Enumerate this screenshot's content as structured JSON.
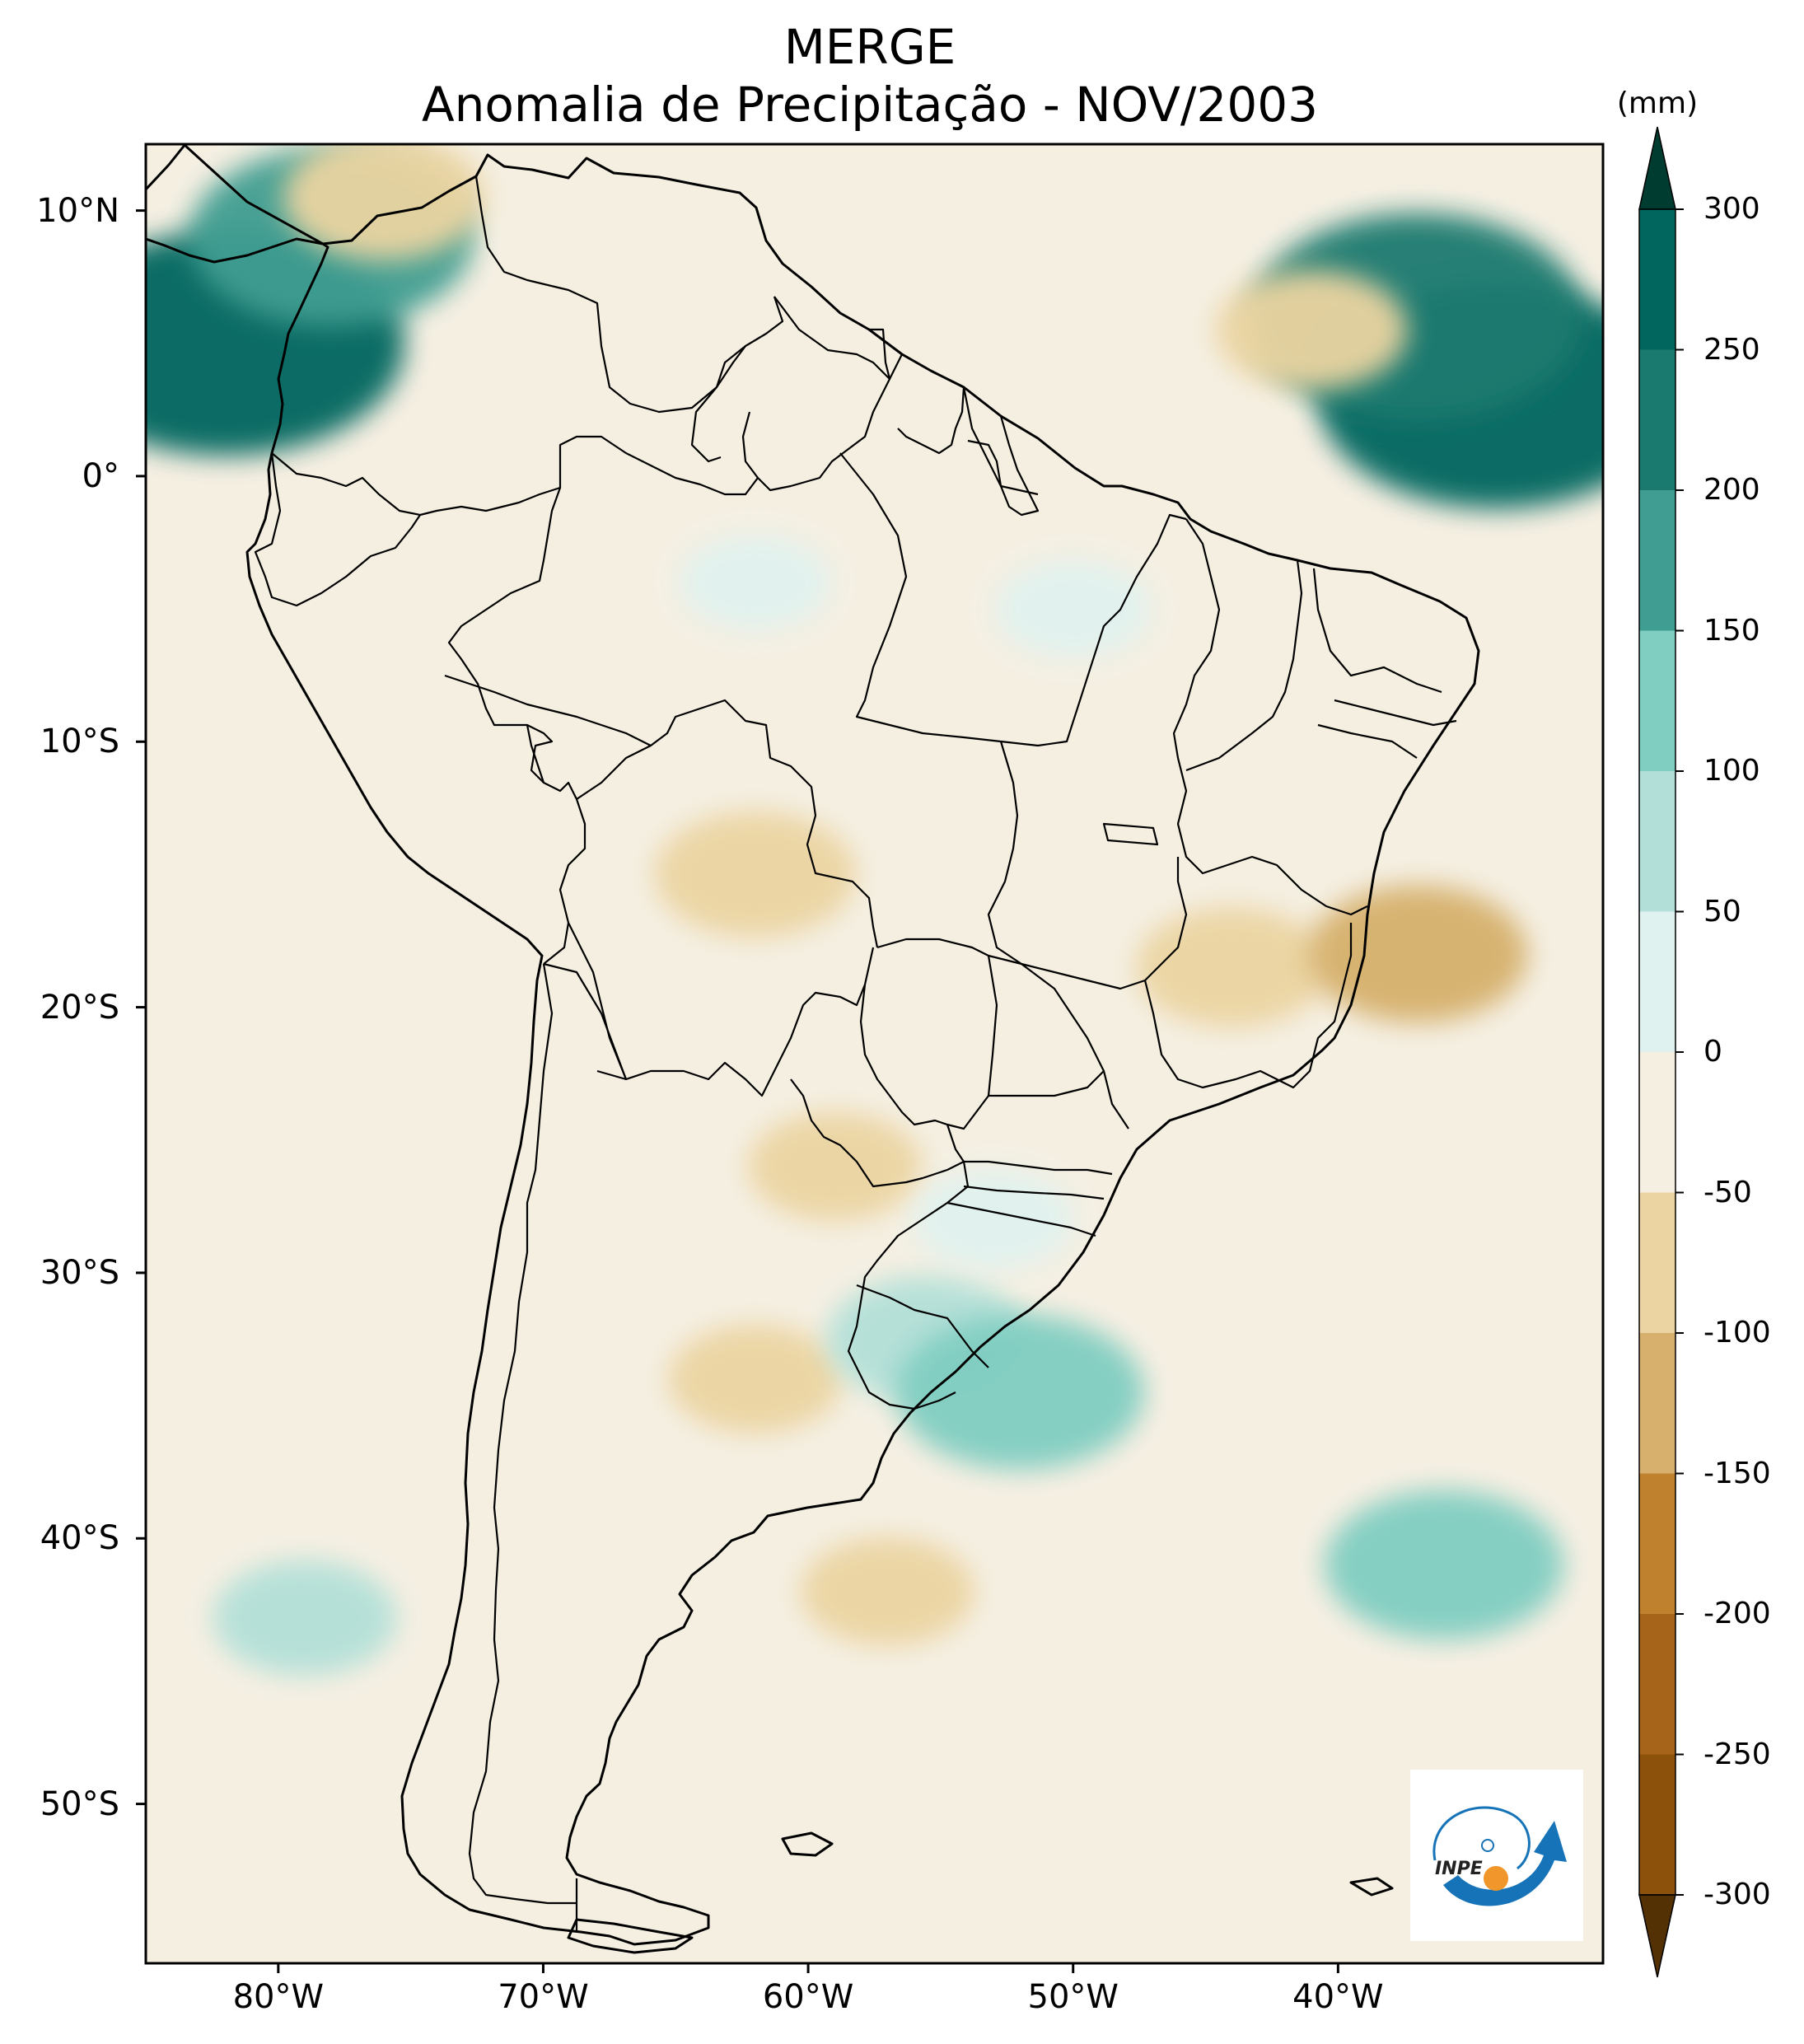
{
  "header": {
    "title": "MERGE",
    "subtitle": "Anomalia de Precipitação - NOV/2003"
  },
  "map": {
    "region": "South America",
    "projection": "Plate Carrée",
    "lon_range": [
      -85,
      -30
    ],
    "lat_range": [
      -56,
      12.5
    ],
    "variable": "precipitation anomaly",
    "lat_ticks": [
      {
        "value": 10,
        "label": "10°N"
      },
      {
        "value": 0,
        "label": "0°"
      },
      {
        "value": -10,
        "label": "10°S"
      },
      {
        "value": -20,
        "label": "20°S"
      },
      {
        "value": -30,
        "label": "30°S"
      },
      {
        "value": -40,
        "label": "40°S"
      },
      {
        "value": -50,
        "label": "50°S"
      }
    ],
    "lon_ticks": [
      {
        "value": -80,
        "label": "80°W"
      },
      {
        "value": -70,
        "label": "70°W"
      },
      {
        "value": -60,
        "label": "60°W"
      },
      {
        "value": -50,
        "label": "50°W"
      },
      {
        "value": -40,
        "label": "40°W"
      }
    ],
    "anomaly_regions": [
      {
        "name": "Pacific off Colombia (wet)",
        "lon": -82,
        "lat": 5,
        "value": 260
      },
      {
        "name": "Caribbean coast Panama (wet)",
        "lon": -78,
        "lat": 9,
        "value": 180
      },
      {
        "name": "Caribbean dry patch",
        "lon": -76,
        "lat": 10.5,
        "value": -90
      },
      {
        "name": "Equatorial Atlantic (wet)",
        "lon": -34,
        "lat": 3,
        "value": 260
      },
      {
        "name": "Atlantic east of Venezuela (wet)",
        "lon": -37,
        "lat": 6,
        "value": 230
      },
      {
        "name": "Atlantic mixed dry",
        "lon": -41,
        "lat": 5.5,
        "value": -80
      },
      {
        "name": "Southern Bolivia / Rondônia (dry)",
        "lon": -62,
        "lat": -15,
        "value": -90
      },
      {
        "name": "Minas Gerais (dry)",
        "lon": -44,
        "lat": -18.5,
        "value": -80
      },
      {
        "name": "Atlantic off Espírito Santo (dry)",
        "lon": -37,
        "lat": -18,
        "value": -110
      },
      {
        "name": "Northern Argentina (dry)",
        "lon": -59,
        "lat": -26,
        "value": -60
      },
      {
        "name": "Central Argentina (dry)",
        "lon": -62,
        "lat": -34,
        "value": -60
      },
      {
        "name": "Uruguay (wet)",
        "lon": -55.5,
        "lat": -32.5,
        "value": 90
      },
      {
        "name": "Atlantic off Uruguay (wet)",
        "lon": -52,
        "lat": -34.5,
        "value": 140
      },
      {
        "name": "South Atlantic (wet)",
        "lon": -36,
        "lat": -41,
        "value": 130
      },
      {
        "name": "Patagonian shelf (dry)",
        "lon": -57,
        "lat": -42,
        "value": -60
      },
      {
        "name": "Pacific off Chile (wet)",
        "lon": -79,
        "lat": -43,
        "value": 70
      },
      {
        "name": "Amazon (slightly wet)",
        "lon": -62,
        "lat": -4,
        "value": 35
      },
      {
        "name": "Pará (slightly wet)",
        "lon": -50,
        "lat": -5,
        "value": 40
      },
      {
        "name": "Southern Brazil (wet)",
        "lon": -53,
        "lat": -28,
        "value": 45
      }
    ]
  },
  "colorbar": {
    "unit": "(mm)",
    "levels": [
      -300,
      -250,
      -200,
      -150,
      -100,
      -50,
      0,
      50,
      100,
      150,
      200,
      250,
      300
    ],
    "tick_labels": [
      "300",
      "250",
      "200",
      "150",
      "100",
      "50",
      "0",
      "-50",
      "-100",
      "-150",
      "-200",
      "-250",
      "-300"
    ],
    "colors": [
      "#6b3a0a",
      "#8c510a",
      "#a6641b",
      "#bf812d",
      "#d6b06c",
      "#ebd4a1",
      "#f5efe2",
      "#e0f2ef",
      "#b2e0d8",
      "#80cdc1",
      "#3f9d91",
      "#1a7a70",
      "#01665e",
      "#003c30"
    ],
    "extend": "both"
  },
  "colors": {
    "brown_extreme": "#543005",
    "teal_extreme": "#003c30",
    "land_border": "#000000"
  },
  "logo": {
    "text": "INPE",
    "colors": [
      "#1673b8",
      "#f0962b"
    ]
  }
}
